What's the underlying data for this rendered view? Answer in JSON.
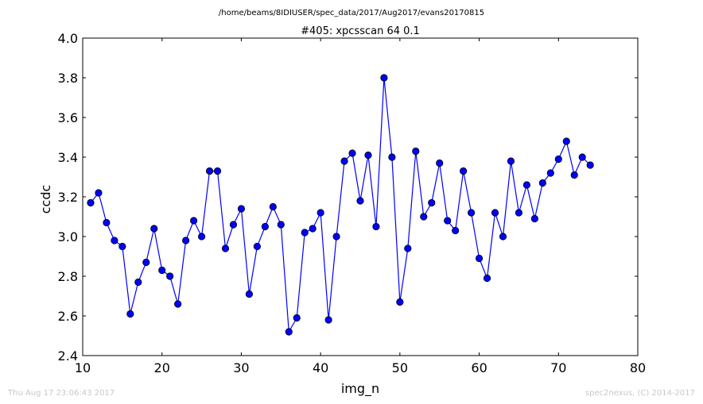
{
  "chart_data": {
    "type": "line",
    "suptitle": "/home/beams/8IDIUSER/spec_data/2017/Aug2017/evans20170815",
    "title": "#405: xpcsscan 64 0.1",
    "xlabel": "img_n",
    "ylabel": "ccdc",
    "xlim": [
      10,
      80
    ],
    "ylim": [
      2.4,
      4.0
    ],
    "xticks": [
      "10",
      "20",
      "30",
      "40",
      "50",
      "60",
      "70",
      "80"
    ],
    "yticks": [
      "2.4",
      "2.6",
      "2.8",
      "3.0",
      "3.2",
      "3.4",
      "3.6",
      "3.8",
      "4.0"
    ],
    "grid": false,
    "color": "#0000ff",
    "series": [
      {
        "x": [
          11,
          12,
          13,
          14,
          15,
          16,
          17,
          18,
          19,
          20,
          21,
          22,
          23,
          24,
          25,
          26,
          27,
          28,
          29,
          30,
          31,
          32,
          33,
          34,
          35,
          36,
          37,
          38,
          39,
          40,
          41,
          42,
          43,
          44,
          45,
          46,
          47,
          48,
          49,
          50,
          51,
          52,
          53,
          54,
          55,
          56,
          57,
          58,
          59,
          60,
          61,
          62,
          63,
          64,
          65,
          66,
          67,
          68,
          69,
          70,
          71,
          72,
          73,
          74
        ],
        "values": [
          3.17,
          3.22,
          3.07,
          2.98,
          2.95,
          2.61,
          2.77,
          2.87,
          3.04,
          2.83,
          2.8,
          2.66,
          2.98,
          3.08,
          3.0,
          3.33,
          3.33,
          2.94,
          3.06,
          3.14,
          2.71,
          2.95,
          3.05,
          3.15,
          3.06,
          2.52,
          2.59,
          3.02,
          3.04,
          3.12,
          2.58,
          3.0,
          3.38,
          3.42,
          3.18,
          3.41,
          3.05,
          3.8,
          3.4,
          2.67,
          2.94,
          3.43,
          3.1,
          3.17,
          3.37,
          3.08,
          3.03,
          3.33,
          3.12,
          2.89,
          2.79,
          3.12,
          3.0,
          3.38,
          3.12,
          3.26,
          3.09,
          3.27,
          3.32,
          3.39,
          3.48,
          3.31,
          3.4,
          3.36
        ]
      }
    ]
  },
  "footer": {
    "timestamp": "Thu Aug 17 23:06:43 2017",
    "credit": "spec2nexus, (C) 2014-2017"
  }
}
